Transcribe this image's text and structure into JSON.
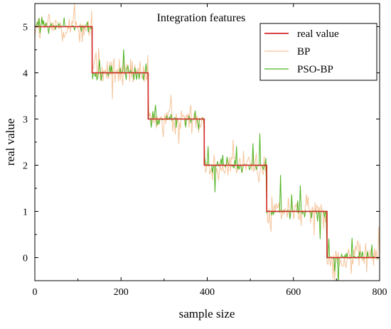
{
  "chart_data": {
    "type": "line",
    "title": "Integration features",
    "xlabel": "sample size",
    "ylabel": "real value",
    "xlim": [
      0,
      800
    ],
    "ylim": [
      -0.5,
      5.5
    ],
    "xticks": [
      0,
      200,
      400,
      600,
      800
    ],
    "yticks": [
      0,
      1,
      2,
      3,
      4,
      5
    ],
    "legend_position": "top-right",
    "grid": false,
    "colors": {
      "real value": "#d62728",
      "BP": "#f5c49a",
      "PSO-BP": "#4db31f"
    },
    "series": [
      {
        "name": "real value",
        "kind": "step",
        "x": [
          0,
          133,
          133,
          263,
          263,
          393,
          393,
          538,
          538,
          678,
          678,
          800
        ],
        "y": [
          5,
          5,
          4,
          4,
          3,
          3,
          2,
          2,
          1,
          1,
          0,
          0
        ]
      },
      {
        "name": "BP",
        "kind": "noisy",
        "note_levels": [
          5,
          4,
          3,
          2,
          1,
          0
        ],
        "noise_amplitude": 0.35
      },
      {
        "name": "PSO-BP",
        "kind": "noisy",
        "noise_amplitude": 0.18
      }
    ]
  }
}
